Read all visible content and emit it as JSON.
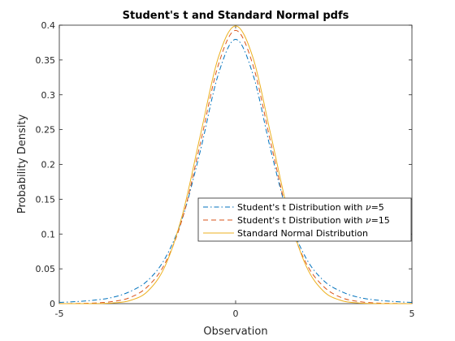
{
  "chart_data": {
    "type": "line",
    "title": "Student's t and Standard Normal pdfs",
    "xlabel": "Observation",
    "ylabel": "Probability Density",
    "xlim": [
      -5,
      5
    ],
    "ylim": [
      0,
      0.4
    ],
    "xticks": [
      -5,
      0,
      5
    ],
    "yticks": [
      0,
      0.05,
      0.1,
      0.15,
      0.2,
      0.25,
      0.3,
      0.35,
      0.4
    ],
    "grid": false,
    "legend_position": "right",
    "x": [
      -5,
      -4.5,
      -4,
      -3.5,
      -3,
      -2.5,
      -2,
      -1.5,
      -1,
      -0.5,
      0,
      0.5,
      1,
      1.5,
      2,
      2.5,
      3,
      3.5,
      4,
      4.5,
      5
    ],
    "series": [
      {
        "legend_prefix": "Student's t Distribution with ",
        "legend_symbol": "ν",
        "legend_suffix": "=5",
        "color": "#0072bd",
        "style": "dash-dot",
        "values": [
          0.0018,
          0.003,
          0.0051,
          0.0089,
          0.0173,
          0.0329,
          0.0651,
          0.1245,
          0.2197,
          0.3279,
          0.3796,
          0.3279,
          0.2197,
          0.1245,
          0.0651,
          0.0329,
          0.0173,
          0.0089,
          0.0051,
          0.003,
          0.0018
        ]
      },
      {
        "legend_prefix": "Student's t Distribution with ",
        "legend_symbol": "ν",
        "legend_suffix": "=15",
        "color": "#d95319",
        "style": "dashed",
        "values": [
          0.0001,
          0.0003,
          0.0009,
          0.003,
          0.0087,
          0.0243,
          0.0581,
          0.1236,
          0.2304,
          0.3413,
          0.3925,
          0.3413,
          0.2304,
          0.1236,
          0.0581,
          0.0243,
          0.0087,
          0.003,
          0.0009,
          0.0003,
          0.0001
        ]
      },
      {
        "legend_prefix": "Standard Normal Distribution",
        "legend_symbol": "",
        "legend_suffix": "",
        "color": "#edb120",
        "style": "solid",
        "values": [
          0.0,
          0.0,
          0.0001,
          0.0009,
          0.0044,
          0.0175,
          0.054,
          0.1295,
          0.242,
          0.3521,
          0.3989,
          0.3521,
          0.242,
          0.1295,
          0.054,
          0.0175,
          0.0044,
          0.0009,
          0.0001,
          0.0,
          0.0
        ]
      }
    ]
  }
}
